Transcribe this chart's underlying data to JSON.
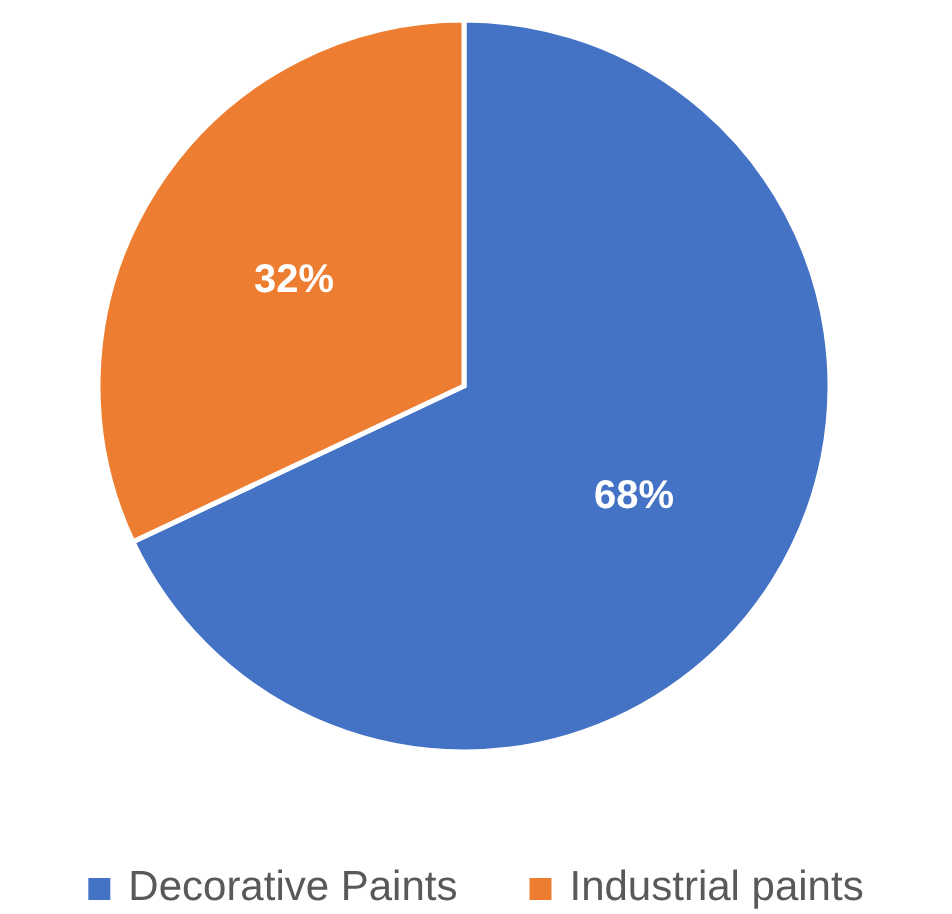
{
  "chart_data": {
    "type": "pie",
    "categories": [
      "Decorative Paints",
      "Industrial paints"
    ],
    "values": [
      68,
      32
    ],
    "value_labels": [
      "68%",
      "32%"
    ],
    "colors": [
      "#4472c4",
      "#ed7d31"
    ],
    "legend": "bottom"
  }
}
